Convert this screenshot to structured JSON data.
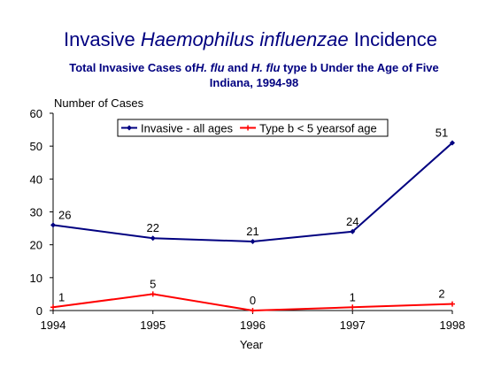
{
  "title": {
    "part1": "Invasive ",
    "italic": "Haemophilus influenzae",
    "part2": " Incidence"
  },
  "subtitle": {
    "line1_a": "Total Invasive Cases of",
    "line1_b": "H. flu",
    "line1_c": " and ",
    "line1_d": "H. flu",
    "line1_e": " type b Under the Age of Five",
    "line2": "Indiana, 1994-98"
  },
  "chart_data": {
    "type": "line",
    "x": [
      1994,
      1995,
      1996,
      1997,
      1998
    ],
    "categories": [
      "1994",
      "1995",
      "1996",
      "1997",
      "1998"
    ],
    "series": [
      {
        "name": "Invasive - all ages",
        "values": [
          26,
          22,
          21,
          24,
          51
        ],
        "color": "#000080"
      },
      {
        "name": "Type b < 5 yearsof age",
        "values": [
          1,
          5,
          0,
          1,
          2
        ],
        "color": "#ff0000"
      }
    ],
    "xlabel": "Year",
    "ylabel": "Number of Cases",
    "ylim": [
      0,
      60
    ],
    "yticks": [
      "0",
      "10",
      "20",
      "30",
      "40",
      "50",
      "60"
    ],
    "grid": false,
    "legend": "top"
  }
}
